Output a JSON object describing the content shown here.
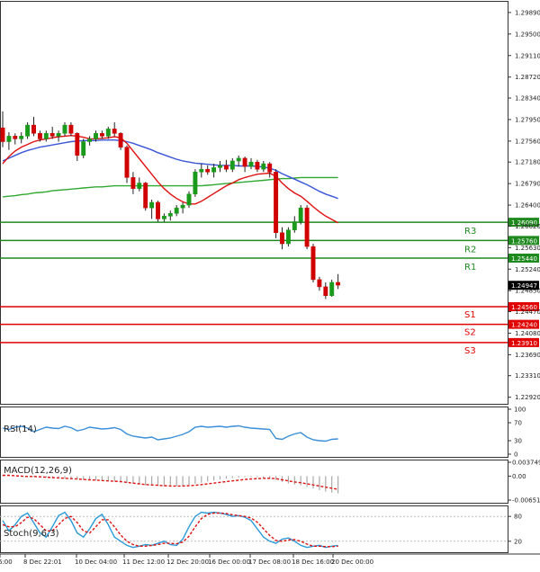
{
  "chart_data": {
    "type": "candlestick",
    "main": {
      "y_ticks": [
        "1.29890",
        "1.29500",
        "1.29110",
        "1.28720",
        "1.28340",
        "1.27950",
        "1.27560",
        "1.27180",
        "1.26790",
        "1.26400",
        "1.26020",
        "1.25630",
        "1.25240",
        "1.24850",
        "1.24470",
        "1.24080",
        "1.23690",
        "1.23310",
        "1.22920"
      ],
      "ylim": [
        1.228,
        1.301
      ],
      "last_price": "1.24947",
      "levels": [
        {
          "label": "R3",
          "price": 1.2609,
          "price_text": "1.26090",
          "color": "#1e8a1e"
        },
        {
          "label": "R2",
          "price": 1.2576,
          "price_text": "1.25760",
          "color": "#1e8a1e"
        },
        {
          "label": "R1",
          "price": 1.2544,
          "price_text": "1.25440",
          "color": "#1e8a1e"
        },
        {
          "label": "S1",
          "price": 1.2456,
          "price_text": "1.24560",
          "color": "#e00000"
        },
        {
          "label": "S2",
          "price": 1.2424,
          "price_text": "1.24240",
          "color": "#e00000"
        },
        {
          "label": "S3",
          "price": 1.2391,
          "price_text": "1.23910",
          "color": "#e00000"
        }
      ],
      "candles": [
        [
          1.278,
          1.281,
          1.2745,
          1.2755
        ],
        [
          1.2755,
          1.2772,
          1.274,
          1.2765
        ],
        [
          1.2765,
          1.277,
          1.275,
          1.276
        ],
        [
          1.276,
          1.2772,
          1.2752,
          1.2765
        ],
        [
          1.2765,
          1.279,
          1.276,
          1.2785
        ],
        [
          1.2785,
          1.28,
          1.2765,
          1.277
        ],
        [
          1.277,
          1.2775,
          1.2755,
          1.276
        ],
        [
          1.276,
          1.2775,
          1.2755,
          1.277
        ],
        [
          1.277,
          1.2782,
          1.276,
          1.2765
        ],
        [
          1.2765,
          1.2775,
          1.2755,
          1.277
        ],
        [
          1.277,
          1.279,
          1.2765,
          1.2785
        ],
        [
          1.2785,
          1.279,
          1.2765,
          1.277
        ],
        [
          1.277,
          1.2772,
          1.272,
          1.273
        ],
        [
          1.273,
          1.276,
          1.2725,
          1.2755
        ],
        [
          1.2755,
          1.2765,
          1.2748,
          1.276
        ],
        [
          1.276,
          1.2775,
          1.2755,
          1.277
        ],
        [
          1.277,
          1.2775,
          1.276,
          1.2765
        ],
        [
          1.2765,
          1.2782,
          1.276,
          1.2778
        ],
        [
          1.2778,
          1.279,
          1.2765,
          1.277
        ],
        [
          1.277,
          1.2772,
          1.274,
          1.2745
        ],
        [
          1.2745,
          1.2748,
          1.268,
          1.269
        ],
        [
          1.269,
          1.27,
          1.266,
          1.267
        ],
        [
          1.267,
          1.269,
          1.2665,
          1.268
        ],
        [
          1.268,
          1.2682,
          1.263,
          1.2635
        ],
        [
          1.2635,
          1.265,
          1.2615,
          1.2645
        ],
        [
          1.2645,
          1.2648,
          1.261,
          1.2615
        ],
        [
          1.2615,
          1.2625,
          1.261,
          1.262
        ],
        [
          1.262,
          1.263,
          1.2612,
          1.2625
        ],
        [
          1.2625,
          1.264,
          1.262,
          1.2635
        ],
        [
          1.2635,
          1.2645,
          1.2625,
          1.264
        ],
        [
          1.264,
          1.2665,
          1.2635,
          1.266
        ],
        [
          1.266,
          1.2705,
          1.2655,
          1.27
        ],
        [
          1.27,
          1.2715,
          1.269,
          1.2705
        ],
        [
          1.2705,
          1.2712,
          1.2695,
          1.27
        ],
        [
          1.27,
          1.2715,
          1.269,
          1.2708
        ],
        [
          1.2708,
          1.272,
          1.27,
          1.2712
        ],
        [
          1.2712,
          1.2722,
          1.27,
          1.2705
        ],
        [
          1.2705,
          1.2725,
          1.27,
          1.272
        ],
        [
          1.272,
          1.273,
          1.271,
          1.2725
        ],
        [
          1.2725,
          1.2728,
          1.27,
          1.271
        ],
        [
          1.271,
          1.2725,
          1.2705,
          1.2718
        ],
        [
          1.2718,
          1.2722,
          1.27,
          1.2705
        ],
        [
          1.2705,
          1.272,
          1.27,
          1.2715
        ],
        [
          1.2715,
          1.2718,
          1.269,
          1.27
        ],
        [
          1.27,
          1.2705,
          1.258,
          1.259
        ],
        [
          1.259,
          1.26,
          1.256,
          1.257
        ],
        [
          1.257,
          1.26,
          1.2565,
          1.2595
        ],
        [
          1.2595,
          1.262,
          1.259,
          1.261
        ],
        [
          1.261,
          1.264,
          1.2605,
          1.2635
        ],
        [
          1.2635,
          1.264,
          1.256,
          1.2565
        ],
        [
          1.2565,
          1.257,
          1.25,
          1.2505
        ],
        [
          1.2505,
          1.251,
          1.2485,
          1.2492
        ],
        [
          1.2492,
          1.25,
          1.247,
          1.2476
        ],
        [
          1.2476,
          1.2505,
          1.2474,
          1.25
        ],
        [
          1.25,
          1.2515,
          1.2488,
          1.2495
        ]
      ],
      "ma_red": [
        1.2715,
        1.2728,
        1.2738,
        1.2745,
        1.275,
        1.2755,
        1.2758,
        1.276,
        1.2762,
        1.2764,
        1.2765,
        1.2766,
        1.2765,
        1.2763,
        1.276,
        1.276,
        1.2761,
        1.2762,
        1.2764,
        1.2762,
        1.2752,
        1.2738,
        1.2724,
        1.271,
        1.2696,
        1.2682,
        1.267,
        1.266,
        1.2652,
        1.2646,
        1.2642,
        1.2642,
        1.2647,
        1.2654,
        1.2661,
        1.2668,
        1.2675,
        1.268,
        1.2686,
        1.269,
        1.2693,
        1.2696,
        1.2697,
        1.2698,
        1.2692,
        1.268,
        1.267,
        1.2662,
        1.2656,
        1.2647,
        1.2637,
        1.2628,
        1.262,
        1.2614,
        1.2608
      ],
      "ma_blue": [
        1.272,
        1.2725,
        1.273,
        1.2735,
        1.2739,
        1.2742,
        1.2745,
        1.2747,
        1.2749,
        1.2751,
        1.2753,
        1.2755,
        1.2756,
        1.2757,
        1.2757,
        1.2757,
        1.2758,
        1.2758,
        1.2758,
        1.2757,
        1.2755,
        1.2752,
        1.2748,
        1.2744,
        1.274,
        1.2735,
        1.2731,
        1.2727,
        1.2723,
        1.272,
        1.2718,
        1.2716,
        1.2715,
        1.2714,
        1.2713,
        1.2712,
        1.2712,
        1.2712,
        1.2711,
        1.2711,
        1.2711,
        1.271,
        1.2709,
        1.2707,
        1.2703,
        1.2697,
        1.2692,
        1.2687,
        1.2682,
        1.2677,
        1.2671,
        1.2665,
        1.266,
        1.2656,
        1.2652
      ],
      "ma_green": [
        1.2655,
        1.2656,
        1.2657,
        1.2659,
        1.266,
        1.2662,
        1.2663,
        1.2664,
        1.2666,
        1.2667,
        1.2668,
        1.2669,
        1.267,
        1.2671,
        1.2672,
        1.2673,
        1.2673,
        1.2674,
        1.2675,
        1.2675,
        1.2675,
        1.2675,
        1.2675,
        1.2675,
        1.2675,
        1.2675,
        1.2675,
        1.2675,
        1.2675,
        1.2675,
        1.2675,
        1.2675,
        1.2675,
        1.2676,
        1.2677,
        1.2678,
        1.2679,
        1.268,
        1.2681,
        1.2682,
        1.2683,
        1.2684,
        1.2685,
        1.2686,
        1.2687,
        1.2688,
        1.2688,
        1.2689,
        1.269,
        1.269,
        1.269,
        1.269,
        1.269,
        1.269,
        1.269
      ]
    },
    "rsi": {
      "label": "RSI(14)",
      "ticks": [
        "100",
        "70",
        "30",
        "0"
      ],
      "ylim": [
        0,
        100
      ],
      "values": [
        58,
        55,
        60,
        62,
        58,
        50,
        55,
        60,
        58,
        57,
        62,
        59,
        52,
        55,
        60,
        58,
        56,
        57,
        59,
        55,
        45,
        40,
        38,
        36,
        38,
        32,
        34,
        36,
        40,
        44,
        50,
        60,
        62,
        60,
        61,
        62,
        60,
        62,
        63,
        60,
        58,
        57,
        56,
        55,
        35,
        33,
        40,
        45,
        48,
        38,
        32,
        30,
        29,
        33,
        34
      ]
    },
    "macd": {
      "label": "MACD(12,26,9)",
      "ticks": [
        "0.003749",
        "0.00",
        "-0.006511"
      ],
      "ylim": [
        -0.0065,
        0.00375
      ],
      "hist": [
        0.0003,
        0.0002,
        0.0001,
        5e-05,
        -0.0001,
        -0.0002,
        -0.0003,
        -0.0004,
        -0.0005,
        -0.0006,
        -0.0007,
        -0.0008,
        -0.0009,
        -0.001,
        -0.0011,
        -0.0012,
        -0.0013,
        -0.0014,
        -0.0015,
        -0.0017,
        -0.0019,
        -0.0021,
        -0.0023,
        -0.0025,
        -0.0026,
        -0.0027,
        -0.0028,
        -0.0028,
        -0.0027,
        -0.0026,
        -0.0024,
        -0.0021,
        -0.0018,
        -0.0015,
        -0.0012,
        -0.0009,
        -0.0007,
        -0.0005,
        -0.0004,
        -0.0003,
        -0.0003,
        -0.0003,
        -0.0004,
        -0.0005,
        -0.001,
        -0.0016,
        -0.002,
        -0.0023,
        -0.0025,
        -0.0029,
        -0.0034,
        -0.0038,
        -0.0042,
        -0.0045,
        -0.0047
      ],
      "signal": [
        0.0002,
        0.0002,
        0.0001,
        0.0,
        -0.0001,
        -0.0001,
        -0.0002,
        -0.0003,
        -0.0004,
        -0.0005,
        -0.0006,
        -0.0007,
        -0.0008,
        -0.0009,
        -0.001,
        -0.0011,
        -0.0012,
        -0.0013,
        -0.0014,
        -0.0015,
        -0.0017,
        -0.0019,
        -0.0021,
        -0.0023,
        -0.0024,
        -0.0025,
        -0.0026,
        -0.0027,
        -0.0027,
        -0.0027,
        -0.0026,
        -0.0025,
        -0.0023,
        -0.0021,
        -0.0019,
        -0.0017,
        -0.0015,
        -0.0013,
        -0.0011,
        -0.0009,
        -0.0008,
        -0.0007,
        -0.0006,
        -0.0006,
        -0.0007,
        -0.001,
        -0.0013,
        -0.0016,
        -0.0018,
        -0.0021,
        -0.0024,
        -0.0027,
        -0.003,
        -0.0033,
        -0.0036
      ]
    },
    "stoch": {
      "label": "Stoch(9,6,3)",
      "ticks": [
        "80",
        "20"
      ],
      "ylim": [
        0,
        100
      ],
      "main": [
        70,
        45,
        60,
        80,
        88,
        65,
        40,
        30,
        55,
        82,
        90,
        70,
        40,
        30,
        50,
        75,
        85,
        60,
        30,
        20,
        10,
        5,
        8,
        12,
        10,
        15,
        20,
        12,
        10,
        25,
        55,
        80,
        90,
        88,
        90,
        88,
        85,
        80,
        82,
        78,
        70,
        50,
        30,
        20,
        15,
        25,
        28,
        20,
        10,
        5,
        8,
        10,
        5,
        8,
        10
      ],
      "signal": [
        60,
        55,
        55,
        65,
        78,
        75,
        60,
        45,
        45,
        60,
        75,
        80,
        65,
        45,
        40,
        55,
        72,
        72,
        55,
        35,
        20,
        12,
        8,
        8,
        10,
        12,
        15,
        15,
        14,
        18,
        32,
        55,
        75,
        85,
        88,
        88,
        87,
        84,
        82,
        80,
        76,
        66,
        50,
        34,
        22,
        20,
        23,
        24,
        20,
        13,
        8,
        8,
        7,
        7,
        8
      ]
    },
    "x_labels": [
      "6:00",
      "8 Dec 22:01",
      "10 Dec 04:00",
      "11 Dec 12:00",
      "12 Dec 20:00",
      "16 Dec 00:00",
      "17 Dec 08:00",
      "18 Dec 16:00",
      "20 Dec 00:00"
    ]
  }
}
